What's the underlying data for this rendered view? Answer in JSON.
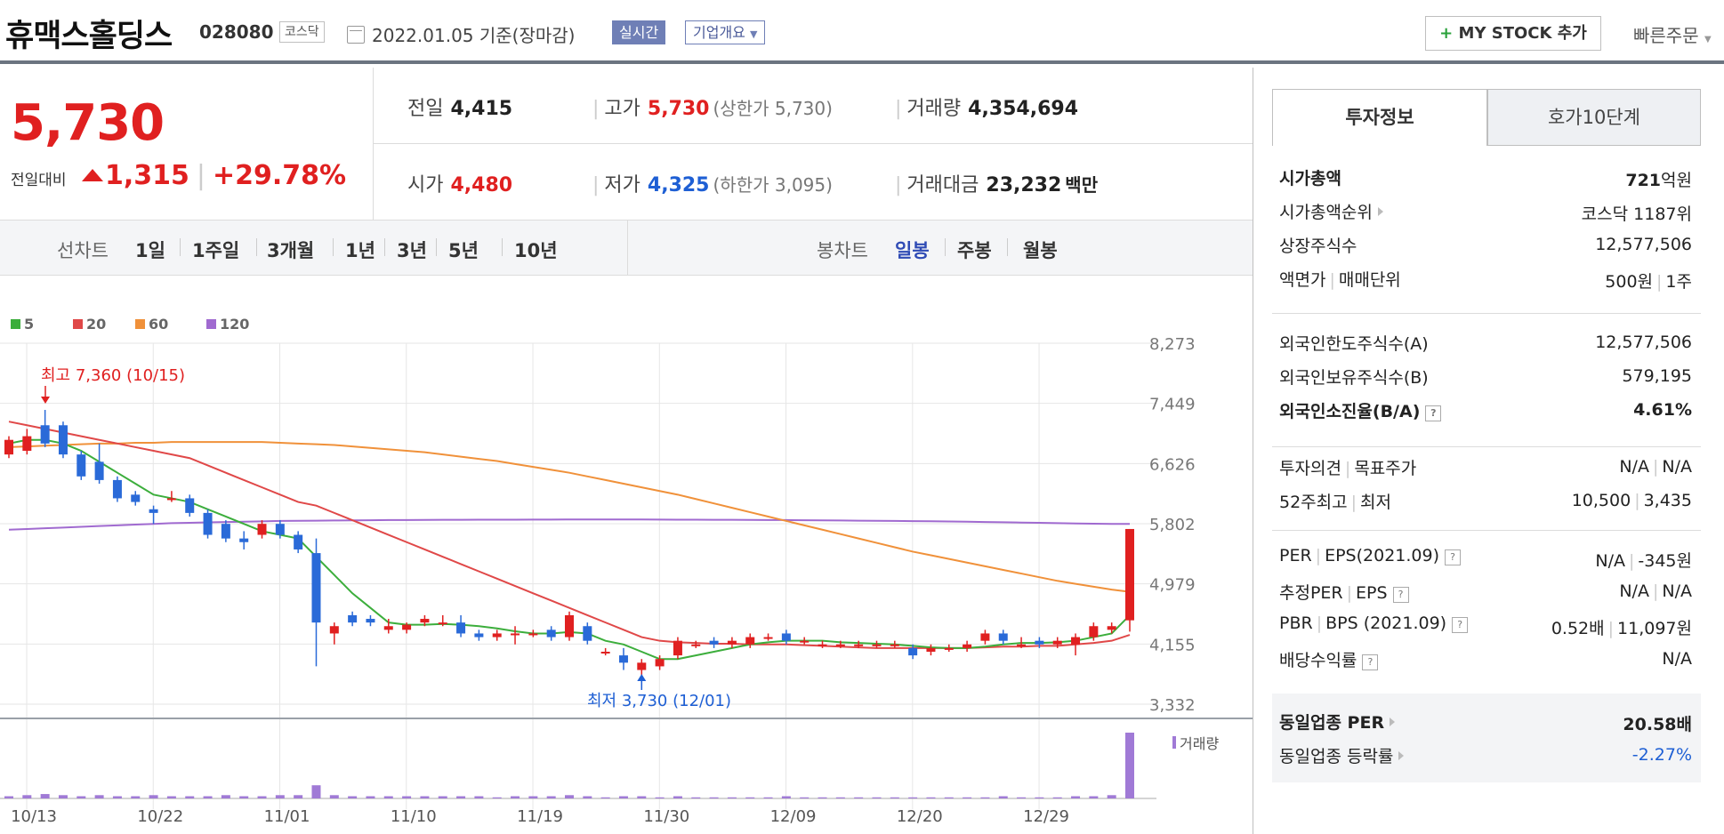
{
  "header": {
    "name": "휴맥스홀딩스",
    "code": "028080",
    "market": "코스닥",
    "date": "2022.01.05 기준(장마감)",
    "realtime": "실시간",
    "company_info": "기업개요",
    "mystock": "MY STOCK 추가",
    "quick_order": "빠른주문"
  },
  "price": {
    "current": "5,730",
    "change_label": "전일대비",
    "change": "1,315",
    "change_pct": "+29.78%"
  },
  "stats": {
    "prev_label": "전일",
    "prev": "4,415",
    "high_label": "고가",
    "high": "5,730",
    "upper_limit": "(상한가 5,730)",
    "volume_label": "거래량",
    "volume": "4,354,694",
    "open_label": "시가",
    "open": "4,480",
    "low_label": "저가",
    "low": "4,325",
    "lower_limit": "(하한가 3,095)",
    "amount_label": "거래대금",
    "amount": "23,232",
    "amount_unit": "백만"
  },
  "period_bar": {
    "line_label": "선차트",
    "line_tabs": [
      "1일",
      "1주일",
      "3개월",
      "1년",
      "3년",
      "5년",
      "10년"
    ],
    "candle_label": "봉차트",
    "candle_tabs": [
      "일봉",
      "주봉",
      "월봉"
    ],
    "active_candle": "일봉"
  },
  "chart_data": {
    "type": "candlestick",
    "ma_legend": [
      {
        "label": "5",
        "color": "#3cae3c"
      },
      {
        "label": "20",
        "color": "#e04848"
      },
      {
        "label": "60",
        "color": "#f0913a"
      },
      {
        "label": "120",
        "color": "#a06ad0"
      }
    ],
    "y_ticks": [
      "8,273",
      "7,449",
      "6,626",
      "5,802",
      "4,979",
      "4,155",
      "3,332"
    ],
    "ylim": [
      3332,
      8273
    ],
    "x_ticks": [
      "10/13",
      "10/22",
      "11/01",
      "11/10",
      "11/19",
      "11/30",
      "12/09",
      "12/20",
      "12/29"
    ],
    "high_annotation": "최고 7,360 (10/15)",
    "low_annotation": "최저 3,730 (12/01)",
    "volume_label": "거래량",
    "candles": [
      {
        "o": 6750,
        "c": 6950,
        "h": 7000,
        "l": 6700
      },
      {
        "o": 6800,
        "c": 7000,
        "h": 7100,
        "l": 6750
      },
      {
        "o": 7150,
        "c": 6900,
        "h": 7360,
        "l": 6850
      },
      {
        "o": 7150,
        "c": 6750,
        "h": 7200,
        "l": 6700
      },
      {
        "o": 6750,
        "c": 6450,
        "h": 6800,
        "l": 6400
      },
      {
        "o": 6650,
        "c": 6400,
        "h": 6900,
        "l": 6350
      },
      {
        "o": 6400,
        "c": 6150,
        "h": 6450,
        "l": 6100
      },
      {
        "o": 6200,
        "c": 6100,
        "h": 6250,
        "l": 6050
      },
      {
        "o": 6000,
        "c": 5950,
        "h": 6050,
        "l": 5800
      },
      {
        "o": 6150,
        "c": 6150,
        "h": 6250,
        "l": 6100
      },
      {
        "o": 6150,
        "c": 5950,
        "h": 6200,
        "l": 5900
      },
      {
        "o": 5950,
        "c": 5650,
        "h": 6000,
        "l": 5600
      },
      {
        "o": 5800,
        "c": 5600,
        "h": 5850,
        "l": 5550
      },
      {
        "o": 5600,
        "c": 5550,
        "h": 5700,
        "l": 5450
      },
      {
        "o": 5650,
        "c": 5800,
        "h": 5850,
        "l": 5600
      },
      {
        "o": 5800,
        "c": 5650,
        "h": 5850,
        "l": 5600
      },
      {
        "o": 5650,
        "c": 5450,
        "h": 5700,
        "l": 5400
      },
      {
        "o": 5400,
        "c": 4450,
        "h": 5600,
        "l": 3850
      },
      {
        "o": 4300,
        "c": 4400,
        "h": 4450,
        "l": 4150
      },
      {
        "o": 4550,
        "c": 4450,
        "h": 4600,
        "l": 4400
      },
      {
        "o": 4500,
        "c": 4450,
        "h": 4550,
        "l": 4400
      },
      {
        "o": 4350,
        "c": 4400,
        "h": 4500,
        "l": 4300
      },
      {
        "o": 4350,
        "c": 4420,
        "h": 4450,
        "l": 4300
      },
      {
        "o": 4450,
        "c": 4500,
        "h": 4550,
        "l": 4400
      },
      {
        "o": 4450,
        "c": 4450,
        "h": 4550,
        "l": 4400
      },
      {
        "o": 4450,
        "c": 4300,
        "h": 4550,
        "l": 4250
      },
      {
        "o": 4300,
        "c": 4250,
        "h": 4350,
        "l": 4200
      },
      {
        "o": 4250,
        "c": 4300,
        "h": 4350,
        "l": 4200
      },
      {
        "o": 4300,
        "c": 4300,
        "h": 4400,
        "l": 4150
      },
      {
        "o": 4300,
        "c": 4300,
        "h": 4350,
        "l": 4250
      },
      {
        "o": 4350,
        "c": 4250,
        "h": 4400,
        "l": 4200
      },
      {
        "o": 4250,
        "c": 4550,
        "h": 4600,
        "l": 4200
      },
      {
        "o": 4400,
        "c": 4200,
        "h": 4450,
        "l": 4150
      },
      {
        "o": 4050,
        "c": 4050,
        "h": 4100,
        "l": 4000
      },
      {
        "o": 4000,
        "c": 3900,
        "h": 4100,
        "l": 3800
      },
      {
        "o": 3800,
        "c": 3900,
        "h": 3950,
        "l": 3730
      },
      {
        "o": 3850,
        "c": 3950,
        "h": 4000,
        "l": 3800
      },
      {
        "o": 4000,
        "c": 4200,
        "h": 4250,
        "l": 3950
      },
      {
        "o": 4150,
        "c": 4150,
        "h": 4200,
        "l": 4100
      },
      {
        "o": 4200,
        "c": 4150,
        "h": 4250,
        "l": 4100
      },
      {
        "o": 4150,
        "c": 4200,
        "h": 4250,
        "l": 4100
      },
      {
        "o": 4150,
        "c": 4250,
        "h": 4300,
        "l": 4100
      },
      {
        "o": 4250,
        "c": 4250,
        "h": 4300,
        "l": 4200
      },
      {
        "o": 4300,
        "c": 4200,
        "h": 4350,
        "l": 4150
      },
      {
        "o": 4200,
        "c": 4200,
        "h": 4250,
        "l": 4150
      },
      {
        "o": 4150,
        "c": 4150,
        "h": 4200,
        "l": 4100
      },
      {
        "o": 4150,
        "c": 4150,
        "h": 4200,
        "l": 4100
      },
      {
        "o": 4150,
        "c": 4150,
        "h": 4200,
        "l": 4100
      },
      {
        "o": 4150,
        "c": 4150,
        "h": 4200,
        "l": 4100
      },
      {
        "o": 4150,
        "c": 4150,
        "h": 4200,
        "l": 4100
      },
      {
        "o": 4100,
        "c": 4000,
        "h": 4150,
        "l": 3950
      },
      {
        "o": 4050,
        "c": 4100,
        "h": 4150,
        "l": 4000
      },
      {
        "o": 4100,
        "c": 4100,
        "h": 4150,
        "l": 4050
      },
      {
        "o": 4100,
        "c": 4150,
        "h": 4200,
        "l": 4050
      },
      {
        "o": 4200,
        "c": 4300,
        "h": 4350,
        "l": 4150
      },
      {
        "o": 4300,
        "c": 4200,
        "h": 4350,
        "l": 4150
      },
      {
        "o": 4150,
        "c": 4150,
        "h": 4250,
        "l": 4100
      },
      {
        "o": 4200,
        "c": 4150,
        "h": 4250,
        "l": 4100
      },
      {
        "o": 4150,
        "c": 4200,
        "h": 4250,
        "l": 4100
      },
      {
        "o": 4150,
        "c": 4250,
        "h": 4300,
        "l": 4000
      },
      {
        "o": 4250,
        "c": 4400,
        "h": 4450,
        "l": 4200
      },
      {
        "o": 4350,
        "c": 4400,
        "h": 4450,
        "l": 4300
      },
      {
        "o": 4480,
        "c": 5730,
        "h": 5730,
        "l": 4325
      }
    ],
    "volume": [
      2,
      3,
      4,
      3,
      2,
      3,
      2,
      2,
      3,
      2,
      2,
      2,
      3,
      2,
      2,
      3,
      3,
      12,
      3,
      2,
      2,
      2,
      2,
      2,
      2,
      2,
      2,
      1,
      2,
      2,
      2,
      3,
      2,
      1,
      2,
      2,
      1,
      2,
      1,
      1,
      1,
      1,
      1,
      2,
      1,
      1,
      1,
      1,
      1,
      1,
      1,
      1,
      1,
      1,
      1,
      2,
      1,
      1,
      1,
      2,
      2,
      3,
      60
    ],
    "ma5": [
      6900,
      6950,
      6950,
      6900,
      6800,
      6650,
      6500,
      6350,
      6200,
      6150,
      6100,
      6000,
      5900,
      5800,
      5700,
      5650,
      5600,
      5350,
      5100,
      4850,
      4650,
      4450,
      4420,
      4420,
      4430,
      4420,
      4400,
      4370,
      4330,
      4300,
      4300,
      4320,
      4300,
      4200,
      4150,
      4050,
      3950,
      3950,
      4000,
      4050,
      4100,
      4150,
      4180,
      4200,
      4200,
      4200,
      4180,
      4170,
      4160,
      4150,
      4130,
      4110,
      4100,
      4100,
      4120,
      4150,
      4170,
      4170,
      4180,
      4200,
      4250,
      4300,
      4550
    ],
    "ma20": [
      7200,
      7150,
      7100,
      7050,
      7000,
      6950,
      6900,
      6850,
      6800,
      6750,
      6700,
      6600,
      6500,
      6400,
      6300,
      6200,
      6100,
      6050,
      5950,
      5850,
      5750,
      5650,
      5550,
      5450,
      5350,
      5250,
      5150,
      5050,
      4950,
      4850,
      4750,
      4650,
      4550,
      4450,
      4350,
      4250,
      4200,
      4180,
      4170,
      4160,
      4160,
      4150,
      4150,
      4150,
      4140,
      4130,
      4120,
      4110,
      4100,
      4100,
      4100,
      4100,
      4100,
      4100,
      4110,
      4120,
      4120,
      4130,
      4130,
      4150,
      4170,
      4200,
      4280
    ],
    "ma60": [
      6850,
      6860,
      6870,
      6880,
      6890,
      6900,
      6900,
      6910,
      6910,
      6920,
      6920,
      6920,
      6920,
      6920,
      6920,
      6910,
      6900,
      6890,
      6880,
      6860,
      6840,
      6820,
      6800,
      6780,
      6750,
      6720,
      6690,
      6660,
      6620,
      6580,
      6540,
      6500,
      6450,
      6400,
      6350,
      6300,
      6250,
      6200,
      6140,
      6080,
      6020,
      5960,
      5900,
      5840,
      5780,
      5720,
      5660,
      5600,
      5540,
      5480,
      5420,
      5370,
      5320,
      5270,
      5220,
      5170,
      5120,
      5070,
      5020,
      4980,
      4940,
      4900,
      4870
    ],
    "ma120": [
      5720,
      5730,
      5740,
      5750,
      5760,
      5770,
      5780,
      5790,
      5800,
      5810,
      5815,
      5820,
      5825,
      5830,
      5835,
      5840,
      5842,
      5844,
      5846,
      5848,
      5850,
      5852,
      5853,
      5854,
      5855,
      5856,
      5857,
      5858,
      5858,
      5859,
      5859,
      5860,
      5860,
      5860,
      5860,
      5860,
      5859,
      5858,
      5857,
      5856,
      5855,
      5854,
      5853,
      5852,
      5850,
      5848,
      5846,
      5844,
      5842,
      5840,
      5838,
      5836,
      5833,
      5830,
      5826,
      5822,
      5818,
      5814,
      5810,
      5806,
      5802,
      5800,
      5800
    ]
  },
  "right_panel": {
    "tab_invest": "투자정보",
    "tab_hoga": "호가10단계",
    "s1": [
      {
        "k": "시가총액",
        "v_num": "721",
        "v_unit": "억원"
      },
      {
        "k": "시가총액순위",
        "v": "코스닥 1187위"
      },
      {
        "k": "상장주식수",
        "v": "12,577,506"
      },
      {
        "k1": "액면가",
        "k2": "매매단위",
        "v1": "500원",
        "v2": "1주"
      }
    ],
    "s2": [
      {
        "k": "외국인한도주식수(A)",
        "v": "12,577,506"
      },
      {
        "k": "외국인보유주식수(B)",
        "v": "579,195"
      },
      {
        "k": "외국인소진율(B/A)",
        "v": "4.61%"
      }
    ],
    "s3": [
      {
        "k1": "투자의견",
        "k2": "목표주가",
        "v1": "N/A",
        "v2": "N/A"
      },
      {
        "k1": "52주최고",
        "k2": "최저",
        "v1": "10,500",
        "v2": "3,435"
      }
    ],
    "s4": [
      {
        "k1": "PER",
        "k2": "EPS(2021.09)",
        "v1": "N/A",
        "v2": "-345원"
      },
      {
        "k1": "추정PER",
        "k2": "EPS",
        "v1": "N/A",
        "v2": "N/A"
      },
      {
        "k1": "PBR",
        "k2": "BPS (2021.09)",
        "v1": "0.52배",
        "v2": "11,097원"
      },
      {
        "k": "배당수익률",
        "v": "N/A"
      }
    ],
    "s5": [
      {
        "k": "동일업종 PER",
        "v_num": "20.58",
        "v_unit": "배"
      },
      {
        "k": "동일업종 등락률",
        "v": "-2.27%"
      }
    ]
  }
}
